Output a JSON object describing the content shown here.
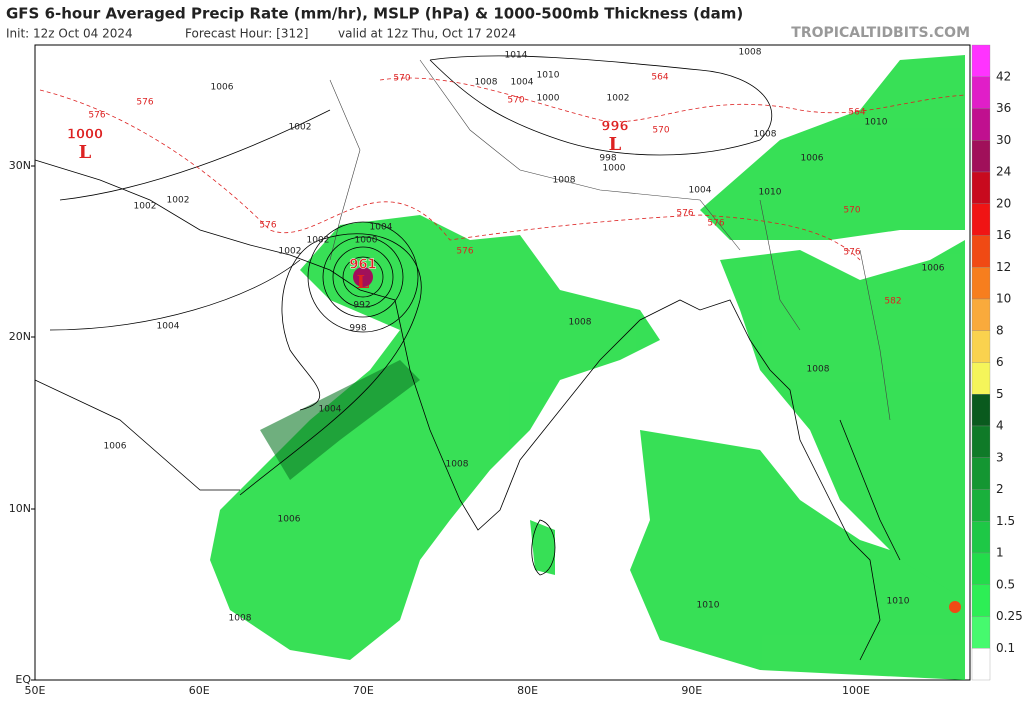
{
  "header": {
    "title": "GFS 6-hour Averaged Precip Rate (mm/hr), MSLP (hPa) & 1000-500mb Thickness (dam)",
    "init": "Init: 12z Oct 04 2024",
    "forecast_hour": "Forecast Hour: [312]",
    "valid": "valid at 12z Thu, Oct 17 2024",
    "watermark": "TROPICALTIDBITS.COM"
  },
  "map": {
    "lat_labels": [
      "30N",
      "20N",
      "10N",
      "EQ"
    ],
    "lon_labels": [
      "50E",
      "60E",
      "70E",
      "80E",
      "90E",
      "100E"
    ],
    "lows": [
      {
        "pressure": "1000",
        "symbol": "L"
      },
      {
        "pressure": "961",
        "symbol": "L"
      },
      {
        "pressure": "996",
        "symbol": "L"
      }
    ],
    "isobar_labels": [
      "1014",
      "1010",
      "1008",
      "1008",
      "1004",
      "1000",
      "1002",
      "1006",
      "1002",
      "1008",
      "1006",
      "998",
      "1000",
      "1008",
      "1004",
      "1010",
      "1002",
      "1002",
      "1004",
      "1000",
      "1002",
      "1002",
      "992",
      "998",
      "1004",
      "1008",
      "1008",
      "1006",
      "1004",
      "1006",
      "1008",
      "1006",
      "1008",
      "1010",
      "1010",
      "1010"
    ],
    "thickness_labels": [
      "576",
      "576",
      "570",
      "570",
      "564",
      "570",
      "576",
      "576",
      "576",
      "576",
      "570",
      "576",
      "564",
      "582"
    ]
  },
  "colorbar": {
    "labels": [
      "42",
      "36",
      "30",
      "24",
      "20",
      "16",
      "12",
      "10",
      "8",
      "6",
      "5",
      "4",
      "3",
      "2",
      "1.5",
      "1",
      "0.5",
      "0.25",
      "0.1"
    ],
    "colors": [
      "#ff33ff",
      "#e01ec8",
      "#c0108f",
      "#a0105a",
      "#c80a1e",
      "#f01414",
      "#f04a14",
      "#f77e1e",
      "#f9aa3c",
      "#fad24e",
      "#f5f55a",
      "#0a5a1e",
      "#0f7a28",
      "#149632",
      "#19b03c",
      "#1ec846",
      "#23dc4b",
      "#2dee55",
      "#46fa6e",
      "#ffffff"
    ]
  }
}
